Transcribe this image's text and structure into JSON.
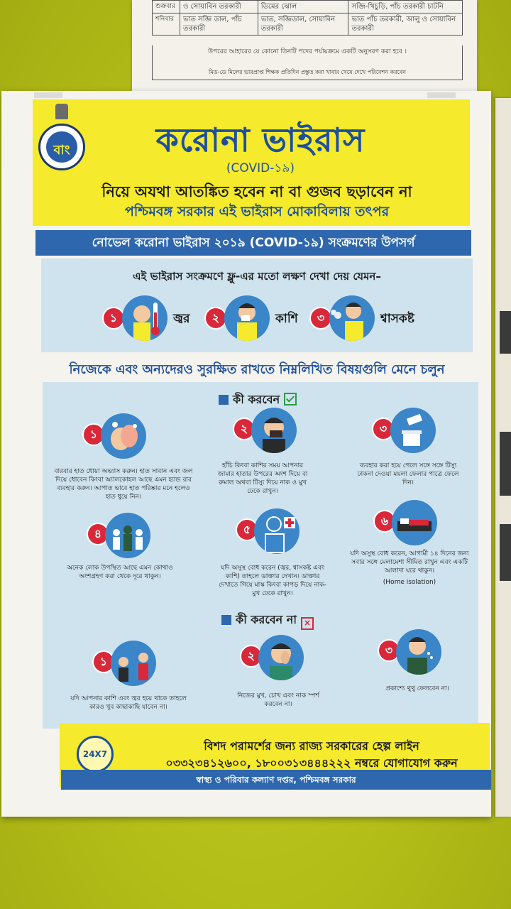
{
  "top_notice": {
    "rows": [
      {
        "day": "শুক্রবার",
        "c1": "ও সোয়াবিন তরকারী",
        "c2": "ডিমের ঝোল",
        "c3": "সব্জি-খিচুড়ি, পাঁচ তরকারী চাটনি"
      },
      {
        "day": "শনিবার",
        "c1": "ভাত সব্জি ডাল, পাঁচ তরকারী",
        "c2": "ভাত, সব্জিডাল, সোয়াবিন তরকারী",
        "c3": "ভাত পাঁচ তরকারী, আলু ও সোয়াবিন তরকারী"
      }
    ],
    "line1": "উপরের আহারের যে কোনো তিনটি পদের পর্যায়ক্রমে একটি অনুসরণ করা হবে ।",
    "line3": "মিড-ডে মিলের ভারপ্রাপ্ত শিক্ষক প্রতিদিন প্রস্তুত করা খাবার খেয়ে দেখে পরিবেশন করবেন"
  },
  "header": {
    "title": "করোনা ভাইরাস",
    "covid": "(COVID-১৯)",
    "line1": "নিয়ে অযথা আতঙ্কিত হবেন না বা গুজব ছড়াবেন না",
    "line2": "পশ্চিমবঙ্গ সরকার এই ভাইরাস মোকাবিলায় তৎপর",
    "emblem_glyph": "বাং"
  },
  "symptoms": {
    "band": "নোভেল করোনা ভাইরাস ২০১৯ (COVID-১৯) সংক্রমণের উপসর্গ",
    "intro": "এই ভাইরাস সংক্রমণে ফ্লু-এর মতো লক্ষণ দেখা দেয় যেমন–",
    "items": [
      {
        "num": "১",
        "label": "জ্বর"
      },
      {
        "num": "২",
        "label": "কাশি"
      },
      {
        "num": "৩",
        "label": "শ্বাসকষ্ট"
      }
    ]
  },
  "follow_line": "নিজেকে এবং অন্যদেরও সুরক্ষিত রাখতে নিম্নলিখিত বিষয়গুলি মেনে চলুন",
  "dos": {
    "heading": "কী করবেন",
    "items": [
      {
        "num": "১",
        "text": "বারবার হাত ধোয়া অভ্যাস করুন। হাত সাবান এবং জল দিয়ে ধোবেন কিংবা অ্যালকোহল আছে এমন হ্যান্ড রাব ব্যবহার করুন। আপাত ভাবে হাত পরিষ্কার মনে হলেও হাত ধুয়ে নিন।"
      },
      {
        "num": "২",
        "text": "হাঁচি কিংবা কাশির সময় আপনার জামার হাতার উপরের অংশ দিয়ে বা রুমাল অথবা টিস্যু দিয়ে নাক ও মুখ ঢেকে রাখুন।"
      },
      {
        "num": "৩",
        "text": "ব্যবহার করা হয়ে গেলে সঙ্গে সঙ্গে টিস্যু ঢাকনা দেওয়া ময়লা ফেলার পাত্রে ফেলে দিন।"
      },
      {
        "num": "৪",
        "text": "অনেক লোক উপস্থিত আছে এমন কোথাও অংশগ্রহণ করা থেকে দূরে থাকুন।"
      },
      {
        "num": "৫",
        "text": "যদি অসুস্থ বোধ করেন (জ্বর, শ্বাসকষ্ট এবং কাশি) তাহলে ডাক্তার দেখান। ডাক্তার দেখাতে গিয়ে মাস্ক কিংবা কাপড় দিয়ে নাক-মুখ ঢেকে রাখুন।"
      },
      {
        "num": "৬",
        "text": "যদি অসুস্থ বোধ করেন, আগামী ১৪ দিনের জন্য সবার সঙ্গে মেলামেশা সীমিত রাখুন এবং একটি আলাদা ঘরে থাকুন।",
        "extra": "(Home isolation)"
      }
    ]
  },
  "donts": {
    "heading": "কী করবেন না",
    "items": [
      {
        "num": "১",
        "text": "যদি আপনার কাশি এবং জ্বর হয়ে থাকে তাহলে কারও খুব কাছাকাছি যাবেন না।"
      },
      {
        "num": "২",
        "text": "নিজের মুখ, চোখ এবং নাক স্পর্শ করবেন না।"
      },
      {
        "num": "৩",
        "text": "প্রকাশ্যে থুথু ফেলবেন না।"
      }
    ]
  },
  "helpline": {
    "badge": "24X7",
    "line1": "বিশদ পরামর্শের জন্য রাজ্য সরকারের হেল্প লাইন",
    "line2": "০৩৩২৩৪১২৬০০, ১৮০০৩১৩৪৪৪২২২ নম্বরে যোগাযোগ করুন",
    "footer": "স্বাস্থ্য ও পরিবার কল্যাণ দপ্তর, পশ্চিমবঙ্গ সরকার"
  },
  "colors": {
    "wall": "#b6c21a",
    "poster_yellow": "#f5ea2c",
    "blue": "#2e67ad",
    "light_blue": "#cfe3ee",
    "red": "#d8283a"
  }
}
